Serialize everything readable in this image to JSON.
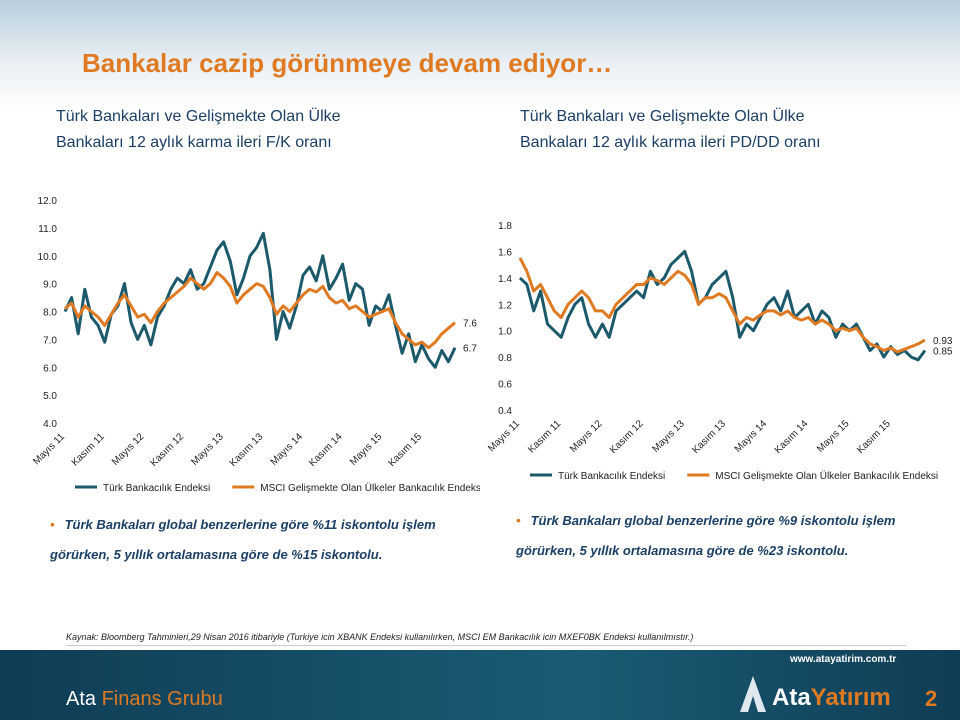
{
  "header": {
    "title": "Bankalar cazip görünmeye devam ediyor…"
  },
  "chart_data": [
    {
      "type": "line",
      "title": "Türk Bankaları ve Gelişmekte Olan Ülke Bankaları 12 aylık karma ileri F/K oranı",
      "categories": [
        "Mayıs 11",
        null,
        null,
        null,
        null,
        null,
        "Kasım 11",
        null,
        null,
        null,
        null,
        null,
        "Mayıs 12",
        null,
        null,
        null,
        null,
        null,
        "Kasım 12",
        null,
        null,
        null,
        null,
        null,
        "Mayıs 13",
        null,
        null,
        null,
        null,
        null,
        "Kasım 13",
        null,
        null,
        null,
        null,
        null,
        "Mayıs 14",
        null,
        null,
        null,
        null,
        null,
        "Kasım 14",
        null,
        null,
        null,
        null,
        null,
        "Mayıs 15",
        null,
        null,
        null,
        null,
        null,
        "Kasım 15",
        null,
        null,
        null,
        null,
        null
      ],
      "series": [
        {
          "name": "Türk Bankacılık Endeksi",
          "color": "#1c5a6b",
          "values": [
            8.0,
            8.5,
            7.2,
            8.8,
            7.8,
            7.5,
            6.9,
            7.9,
            8.2,
            9.0,
            7.6,
            7.0,
            7.5,
            6.8,
            7.8,
            8.2,
            8.8,
            9.2,
            9.0,
            9.5,
            8.8,
            9.0,
            9.6,
            10.2,
            10.5,
            9.8,
            8.6,
            9.2,
            10.0,
            10.3,
            10.8,
            9.5,
            7.0,
            8.0,
            7.4,
            8.2,
            9.3,
            9.6,
            9.1,
            10.0,
            8.8,
            9.2,
            9.7,
            8.4,
            9.0,
            8.8,
            7.5,
            8.2,
            8.0,
            8.6,
            7.5,
            6.5,
            7.2,
            6.2,
            6.8,
            6.3,
            6.0,
            6.6,
            6.2,
            6.7
          ],
          "value_labels": [
            null,
            null,
            null,
            null,
            null,
            null,
            null,
            null,
            null,
            null,
            null,
            null,
            null,
            null,
            null,
            null,
            null,
            null,
            null,
            null,
            null,
            null,
            null,
            null,
            null,
            null,
            null,
            null,
            null,
            null,
            null,
            null,
            null,
            null,
            null,
            null,
            null,
            null,
            null,
            null,
            null,
            null,
            null,
            null,
            null,
            null,
            null,
            null,
            null,
            null,
            null,
            null,
            null,
            null,
            null,
            null,
            null,
            null,
            null,
            "6.7"
          ]
        },
        {
          "name": "MSCI Gelişmekte Olan Ülkeler Bankacılık Endeksi",
          "color": "#e07a22",
          "values": [
            8.1,
            8.3,
            7.8,
            8.2,
            8.0,
            7.8,
            7.5,
            7.9,
            8.3,
            8.6,
            8.2,
            7.8,
            7.9,
            7.6,
            8.0,
            8.3,
            8.5,
            8.7,
            8.9,
            9.2,
            9.0,
            8.8,
            9.0,
            9.4,
            9.2,
            8.9,
            8.3,
            8.6,
            8.8,
            9.0,
            8.9,
            8.5,
            7.9,
            8.2,
            8.0,
            8.3,
            8.6,
            8.8,
            8.7,
            8.9,
            8.5,
            8.3,
            8.4,
            8.1,
            8.2,
            8.0,
            7.8,
            7.9,
            8.0,
            8.1,
            7.6,
            7.2,
            7.0,
            6.8,
            6.9,
            6.7,
            6.9,
            7.2,
            7.4,
            7.6
          ],
          "value_labels": [
            null,
            null,
            null,
            null,
            null,
            null,
            null,
            null,
            null,
            null,
            null,
            null,
            null,
            null,
            null,
            null,
            null,
            null,
            null,
            null,
            null,
            null,
            null,
            null,
            null,
            null,
            null,
            null,
            null,
            null,
            null,
            null,
            null,
            null,
            null,
            null,
            null,
            null,
            null,
            null,
            null,
            null,
            null,
            null,
            null,
            null,
            null,
            null,
            null,
            null,
            null,
            null,
            null,
            null,
            null,
            null,
            null,
            null,
            null,
            "7.6"
          ]
        }
      ],
      "ylim": [
        4,
        12
      ],
      "yticks": [
        {
          "value": 4,
          "label": "4.0"
        },
        {
          "value": 5,
          "label": "5.0"
        },
        {
          "value": 6,
          "label": "6.0"
        },
        {
          "value": 7,
          "label": "7.0"
        },
        {
          "value": 8,
          "label": "8.0"
        },
        {
          "value": 9,
          "label": "9.0"
        },
        {
          "value": 10,
          "label": "10.0"
        },
        {
          "value": 11,
          "label": "11.0"
        },
        {
          "value": 12,
          "label": "12.0"
        }
      ],
      "grid": false,
      "legend": "bottom"
    },
    {
      "type": "line",
      "title": "Türk Bankaları ve Gelişmekte Olan Ülke Bankaları 12 aylık karma ileri PD/DD oranı",
      "categories": [
        "Mayıs 11",
        null,
        null,
        null,
        null,
        null,
        "Kasım 11",
        null,
        null,
        null,
        null,
        null,
        "Mayıs 12",
        null,
        null,
        null,
        null,
        null,
        "Kasım 12",
        null,
        null,
        null,
        null,
        null,
        "Mayıs 13",
        null,
        null,
        null,
        null,
        null,
        "Kasım 13",
        null,
        null,
        null,
        null,
        null,
        "Mayıs 14",
        null,
        null,
        null,
        null,
        null,
        "Kasım 14",
        null,
        null,
        null,
        null,
        null,
        "Mayıs 15",
        null,
        null,
        null,
        null,
        null,
        "Kasım 15",
        null,
        null,
        null,
        null,
        null
      ],
      "series": [
        {
          "name": "Türk Bankacılık Endeksi",
          "color": "#1c5a6b",
          "values": [
            1.4,
            1.35,
            1.15,
            1.3,
            1.05,
            1.0,
            0.95,
            1.1,
            1.2,
            1.25,
            1.05,
            0.95,
            1.05,
            0.95,
            1.15,
            1.2,
            1.25,
            1.3,
            1.25,
            1.45,
            1.35,
            1.4,
            1.5,
            1.55,
            1.6,
            1.45,
            1.2,
            1.25,
            1.35,
            1.4,
            1.45,
            1.25,
            0.95,
            1.05,
            1.0,
            1.1,
            1.2,
            1.25,
            1.15,
            1.3,
            1.1,
            1.15,
            1.2,
            1.05,
            1.15,
            1.1,
            0.95,
            1.05,
            1.0,
            1.05,
            0.95,
            0.85,
            0.9,
            0.8,
            0.88,
            0.82,
            0.85,
            0.8,
            0.78,
            0.85
          ],
          "value_labels": [
            null,
            null,
            null,
            null,
            null,
            null,
            null,
            null,
            null,
            null,
            null,
            null,
            null,
            null,
            null,
            null,
            null,
            null,
            null,
            null,
            null,
            null,
            null,
            null,
            null,
            null,
            null,
            null,
            null,
            null,
            null,
            null,
            null,
            null,
            null,
            null,
            null,
            null,
            null,
            null,
            null,
            null,
            null,
            null,
            null,
            null,
            null,
            null,
            null,
            null,
            null,
            null,
            null,
            null,
            null,
            null,
            null,
            null,
            null,
            "0.85"
          ]
        },
        {
          "name": "MSCI Gelişmekte Olan Ülkeler Bankacılık Endeksi",
          "color": "#e07a22",
          "values": [
            1.55,
            1.45,
            1.3,
            1.35,
            1.25,
            1.15,
            1.1,
            1.2,
            1.25,
            1.3,
            1.25,
            1.15,
            1.15,
            1.1,
            1.2,
            1.25,
            1.3,
            1.35,
            1.35,
            1.4,
            1.38,
            1.35,
            1.4,
            1.45,
            1.42,
            1.35,
            1.2,
            1.25,
            1.25,
            1.28,
            1.25,
            1.15,
            1.05,
            1.1,
            1.08,
            1.12,
            1.15,
            1.15,
            1.12,
            1.15,
            1.1,
            1.08,
            1.1,
            1.05,
            1.08,
            1.05,
            1.0,
            1.02,
            1.0,
            1.02,
            0.95,
            0.9,
            0.88,
            0.85,
            0.87,
            0.84,
            0.86,
            0.88,
            0.9,
            0.93
          ],
          "value_labels": [
            null,
            null,
            null,
            null,
            null,
            null,
            null,
            null,
            null,
            null,
            null,
            null,
            null,
            null,
            null,
            null,
            null,
            null,
            null,
            null,
            null,
            null,
            null,
            null,
            null,
            null,
            null,
            null,
            null,
            null,
            null,
            null,
            null,
            null,
            null,
            null,
            null,
            null,
            null,
            null,
            null,
            null,
            null,
            null,
            null,
            null,
            null,
            null,
            null,
            null,
            null,
            null,
            null,
            null,
            null,
            null,
            null,
            null,
            null,
            "0.93"
          ]
        }
      ],
      "ylim": [
        0.4,
        1.8
      ],
      "yticks": [
        0.4,
        0.6,
        0.8,
        {
          "value": 1,
          "label": "1.0"
        },
        1.2,
        1.4,
        1.6,
        1.8
      ],
      "grid": false,
      "legend": "bottom"
    }
  ],
  "notes": [
    "Türk Bankaları global benzerlerine göre %11 iskontolu işlem görürken, 5 yıllık ortalamasına göre de %15 iskontolu.",
    "Türk Bankaları global benzerlerine göre %9 iskontolu işlem görürken, 5 yıllık ortalamasına göre de %23 iskontolu."
  ],
  "source": "Kaynak: Bloomberg Tahminleri,29 Nisan 2016 itibariyle (Turkiye icin XBANK Endeksi kullanılırken, MSCI EM Bankacılık icin MXEF0BK Endeksi kullanılmıstır.)",
  "footer": {
    "url": "www.atayatirim.com.tr",
    "brand_left": "Ata",
    "brand_left_accent": "Finans Grubu",
    "brand_right": "Ata",
    "brand_right_accent": "Yatırım",
    "page": "2"
  }
}
